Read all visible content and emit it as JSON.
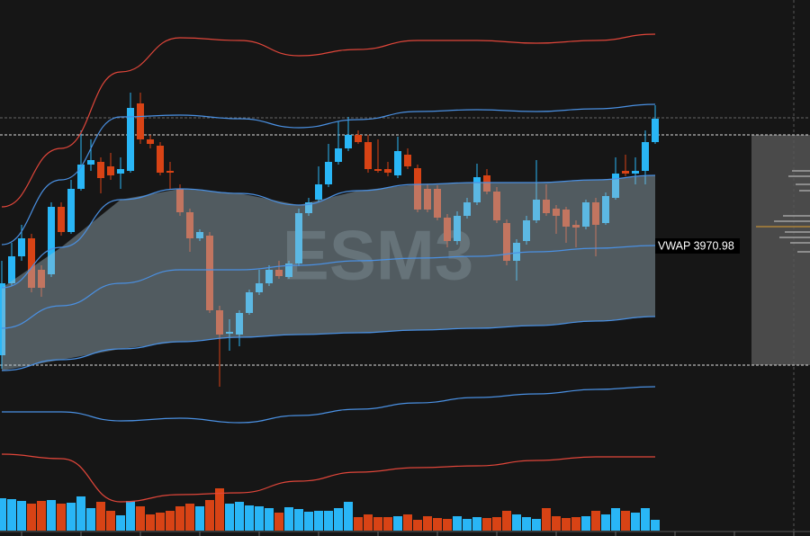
{
  "chart_data": {
    "type": "candlestick",
    "watermark": "ESM3",
    "vwap_label": "VWAP 3970.98",
    "ylim": [
      3938.68,
      3998.28
    ],
    "up_color": "#29b6f6",
    "down_color": "#d84315",
    "open": [
      3958.78,
      3966.78,
      3969.78,
      3971.78,
      3968.28,
      3967.78,
      3975.28,
      3972.48,
      3977.28,
      3979.98,
      3980.28,
      3979.78,
      3978.98,
      3979.28,
      3986.78,
      3982.78,
      3982.08,
      3979.28,
      3977.28,
      3974.68,
      3971.78,
      3972.08,
      3963.78,
      3961.18,
      3961.08,
      3963.48,
      3965.78,
      3966.78,
      3968.28,
      3967.48,
      3968.98,
      3974.58,
      3976.08,
      3977.78,
      3980.28,
      3981.78,
      3983.28,
      3982.48,
      3979.48,
      3979.48,
      3978.78,
      3981.08,
      3979.58,
      3977.28,
      3977.28,
      3974.08,
      3971.48,
      3974.28,
      3975.78,
      3978.78,
      3976.98,
      3973.48,
      3969.28,
      3971.48,
      3973.78,
      3976.08,
      3975.08,
      3974.98,
      3973.28,
      3973.08,
      3975.78,
      3973.48,
      3976.28,
      3979.28,
      3978.98,
      3979.28,
      3982.48
    ],
    "high": [
      3969.28,
      3971.28,
      3973.28,
      3972.28,
      3968.78,
      3975.78,
      3975.78,
      3978.28,
      3983.78,
      3982.78,
      3980.78,
      3981.28,
      3980.78,
      3987.98,
      3987.98,
      3983.28,
      3982.48,
      3980.28,
      3977.78,
      3975.08,
      3972.78,
      3972.48,
      3964.28,
      3962.78,
      3963.78,
      3966.08,
      3968.28,
      3968.78,
      3969.28,
      3969.28,
      3975.08,
      3976.28,
      3979.78,
      3982.28,
      3984.78,
      3985.28,
      3983.78,
      3983.28,
      3982.78,
      3980.28,
      3983.08,
      3981.78,
      3979.98,
      3977.78,
      3977.68,
      3974.48,
      3974.78,
      3976.28,
      3980.08,
      3979.48,
      3977.48,
      3973.88,
      3971.68,
      3974.28,
      3980.48,
      3977.78,
      3975.48,
      3975.28,
      3973.78,
      3976.08,
      3976.28,
      3976.88,
      3980.78,
      3981.08,
      3980.78,
      3983.78,
      3986.58
    ],
    "low": [
      3957.28,
      3966.48,
      3969.28,
      3965.78,
      3965.28,
      3967.48,
      3972.08,
      3972.28,
      3977.08,
      3979.28,
      3976.78,
      3978.28,
      3977.28,
      3979.08,
      3982.28,
      3981.78,
      3978.78,
      3977.28,
      3974.28,
      3970.28,
      3971.48,
      3963.48,
      3955.28,
      3959.28,
      3959.78,
      3963.28,
      3965.48,
      3966.48,
      3967.28,
      3967.28,
      3968.68,
      3974.28,
      3975.78,
      3977.48,
      3979.98,
      3981.48,
      3982.28,
      3979.08,
      3979.08,
      3978.68,
      3978.48,
      3979.48,
      3974.68,
      3974.68,
      3973.78,
      3970.78,
      3971.08,
      3973.98,
      3975.48,
      3976.68,
      3973.48,
      3968.78,
      3967.08,
      3971.08,
      3973.48,
      3974.28,
      3972.28,
      3971.28,
      3970.78,
      3972.78,
      3969.78,
      3973.28,
      3976.08,
      3978.68,
      3977.78,
      3977.78,
      3982.28
    ],
    "close": [
      3966.78,
      3969.78,
      3971.78,
      3966.28,
      3966.28,
      3975.28,
      3972.48,
      3977.28,
      3979.98,
      3980.48,
      3978.48,
      3978.78,
      3979.48,
      3986.28,
      3982.78,
      3982.28,
      3979.08,
      3979.08,
      3974.68,
      3971.78,
      3972.48,
      3963.78,
      3961.08,
      3961.38,
      3963.48,
      3965.78,
      3966.78,
      3968.28,
      3967.58,
      3968.98,
      3974.58,
      3975.78,
      3977.78,
      3980.28,
      3981.78,
      3983.28,
      3982.48,
      3979.48,
      3979.28,
      3979.08,
      3981.48,
      3979.78,
      3974.98,
      3974.98,
      3974.08,
      3971.48,
      3974.28,
      3975.78,
      3978.58,
      3976.98,
      3973.78,
      3969.28,
      3971.28,
      3973.78,
      3976.08,
      3974.58,
      3974.28,
      3973.08,
      3972.98,
      3975.78,
      3973.28,
      3976.48,
      3978.98,
      3978.98,
      3979.28,
      3982.48,
      3985.08
    ],
    "volume": [
      36,
      35,
      33,
      30,
      33,
      34,
      30,
      31,
      38,
      25,
      32,
      22,
      17,
      33,
      27,
      18,
      20,
      22,
      27,
      30,
      27,
      34,
      47,
      30,
      32,
      28,
      27,
      25,
      20,
      26,
      24,
      21,
      22,
      22,
      25,
      32,
      15,
      18,
      15,
      15,
      16,
      18,
      12,
      16,
      14,
      13,
      16,
      13,
      15,
      14,
      15,
      22,
      18,
      15,
      13,
      25,
      16,
      14,
      15,
      16,
      22,
      18,
      25,
      22,
      20,
      25,
      12
    ],
    "volume_ylim": [
      0,
      60
    ],
    "band_x": [
      0,
      6,
      12,
      18,
      24,
      30,
      36,
      42,
      48,
      54,
      60,
      66
    ],
    "bands": [
      {
        "color": "#e0463a",
        "values": [
          3975.28,
          3981.78,
          3990.28,
          3994.08,
          3993.78,
          3992.08,
          3992.78,
          3993.78,
          3993.78,
          3993.48,
          3993.78,
          3994.48
        ]
      },
      {
        "color": "#4a90e2",
        "values": [
          3971.08,
          3978.28,
          3985.28,
          3985.48,
          3985.08,
          3984.08,
          3984.98,
          3985.88,
          3986.08,
          3985.88,
          3986.18,
          3986.68
        ]
      },
      {
        "color": "#4a90e2",
        "values": [
          3966.28,
          3970.78,
          3976.08,
          3977.28,
          3976.78,
          3975.48,
          3977.08,
          3977.78,
          3977.98,
          3977.98,
          3978.28,
          3978.78
        ]
      },
      {
        "color": "#4a90e2",
        "values": [
          3961.78,
          3964.28,
          3966.78,
          3968.28,
          3968.28,
          3968.78,
          3969.28,
          3969.58,
          3969.78,
          3970.28,
          3970.68,
          3970.98
        ]
      },
      {
        "color": "#4a90e2",
        "values": [
          3957.08,
          3958.28,
          3959.48,
          3960.28,
          3960.78,
          3961.08,
          3961.28,
          3961.58,
          3961.78,
          3962.08,
          3962.58,
          3963.08
        ]
      },
      {
        "color": "#4a90e2",
        "values": [
          3952.48,
          3952.48,
          3951.48,
          3951.78,
          3951.28,
          3952.08,
          3952.78,
          3953.48,
          3954.08,
          3954.48,
          3954.98,
          3955.28
        ]
      },
      {
        "color": "#e0463a",
        "values": [
          3947.78,
          3947.28,
          3942.48,
          3943.28,
          3943.48,
          3944.78,
          3945.78,
          3946.28,
          3946.48,
          3947.08,
          3947.48,
          3947.48
        ]
      }
    ],
    "fill_between": [
      2,
      4
    ],
    "levels": [
      3985.18,
      3983.28,
      3957.68
    ]
  }
}
